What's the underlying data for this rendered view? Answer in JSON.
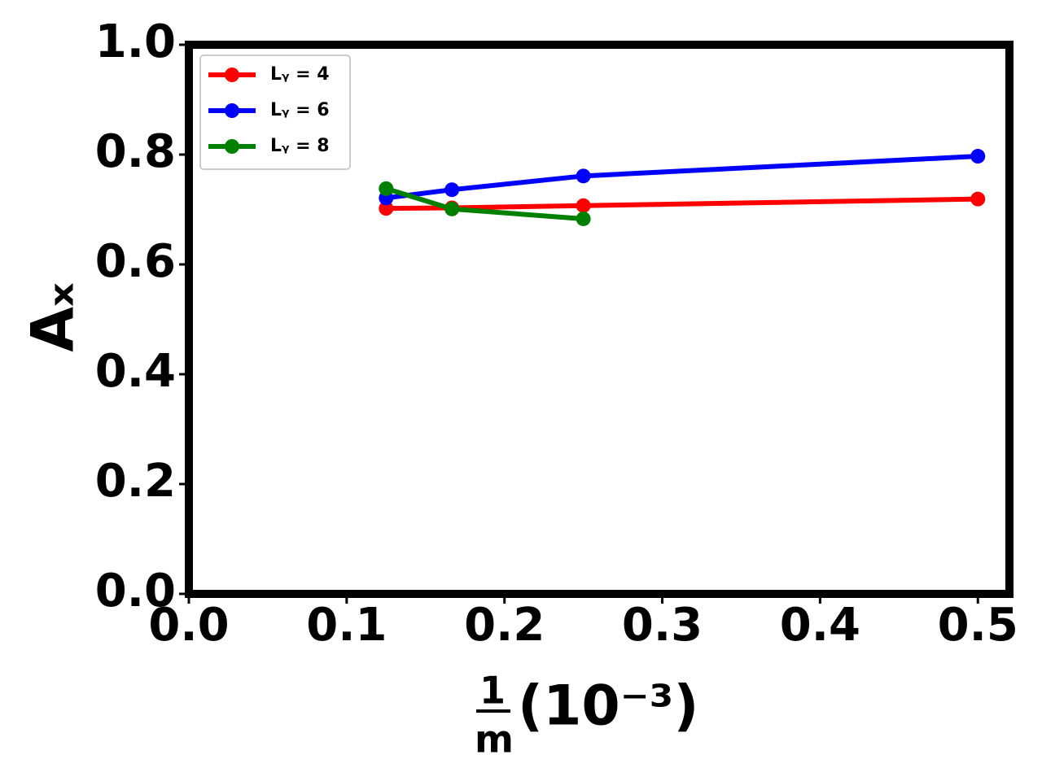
{
  "chart_data": {
    "type": "line",
    "ylabel": "Aₓ",
    "xlabel": {
      "numerator": "1",
      "denominator": "m",
      "unit": "(10⁻³)"
    },
    "x": [
      0.125,
      0.1667,
      0.25,
      0.5
    ],
    "series": [
      {
        "name": "Lᵧ = 4",
        "color": "#ff0000",
        "values": [
          0.702,
          0.703,
          0.707,
          0.719
        ]
      },
      {
        "name": "Lᵧ = 6",
        "color": "#0000ff",
        "values": [
          0.721,
          0.736,
          0.761,
          0.797
        ]
      },
      {
        "name": "Lᵧ = 8",
        "color": "#008000",
        "values": [
          0.738,
          0.701,
          0.683,
          null
        ]
      }
    ],
    "xlim": [
      0,
      0.52
    ],
    "xticks": [
      {
        "value": 0,
        "label": "0.0"
      },
      0.1,
      0.2,
      0.3,
      0.4,
      0.5
    ],
    "ylim": [
      0,
      1
    ],
    "yticks": [
      {
        "value": 0,
        "label": "0.0"
      },
      0.2,
      0.4,
      0.6,
      0.8,
      {
        "value": 1,
        "label": "1.0"
      }
    ],
    "legend": "upper left",
    "grid": false
  }
}
